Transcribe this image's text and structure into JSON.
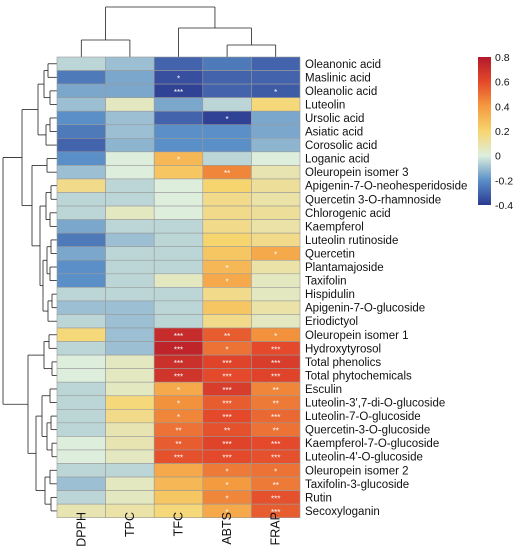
{
  "chart_data": {
    "type": "heatmap",
    "columns": [
      "DPPH",
      "TPC",
      "TFC",
      "ABTS",
      "FRAP"
    ],
    "rows": [
      "Oleanonic acid",
      "Maslinic acid",
      "Oleanolic acid",
      "Luteolin",
      "Ursolic acid",
      "Asiatic acid",
      "Corosolic acid",
      "Loganic acid",
      "Oleuropein isomer 3",
      "Apigenin-7-O-neohesperidoside",
      "Quercetin 3-O-rhamnoside",
      "Chlorogenic acid",
      "Kaempferol",
      "Luteolin rutinoside",
      "Quercetin",
      "Plantamajoside",
      "Taxifolin",
      "Hispidulin",
      "Apigenin-7-O-glucoside",
      "Eriodictyol",
      "Oleuropein isomer 1",
      "Hydroxytyrosol",
      "Total phenolics",
      "Total phytochemicals",
      "Esculin",
      "Luteolin-3',7-di-O-glucoside",
      "Luteolin-7-O-glucoside",
      "Quercetin-3-O-glucoside",
      "Kaempferol-7-O-glucoside",
      "Luteolin-4'-O-glucoside",
      "Oleuropein isomer 2",
      "Taxifolin-3-glucoside",
      "Rutin",
      "Secoxyloganin"
    ],
    "values": [
      [
        -0.05,
        -0.1,
        -0.3,
        -0.25,
        -0.3
      ],
      [
        -0.25,
        -0.15,
        -0.35,
        -0.3,
        -0.3
      ],
      [
        -0.15,
        -0.15,
        -0.38,
        -0.3,
        -0.32
      ],
      [
        -0.1,
        0.05,
        -0.15,
        -0.05,
        0.18
      ],
      [
        -0.2,
        -0.1,
        -0.3,
        -0.38,
        -0.15
      ],
      [
        -0.25,
        -0.1,
        -0.2,
        -0.2,
        -0.15
      ],
      [
        -0.3,
        -0.12,
        -0.2,
        -0.2,
        -0.12
      ],
      [
        -0.2,
        0.0,
        0.3,
        -0.05,
        0.0
      ],
      [
        -0.1,
        0.0,
        0.25,
        0.45,
        0.08
      ],
      [
        0.15,
        -0.05,
        0.0,
        0.2,
        0.12
      ],
      [
        -0.05,
        -0.05,
        0.0,
        0.15,
        0.1
      ],
      [
        -0.05,
        0.05,
        0.0,
        0.15,
        0.12
      ],
      [
        -0.15,
        -0.05,
        -0.05,
        0.15,
        0.1
      ],
      [
        -0.25,
        -0.1,
        -0.05,
        0.2,
        0.15
      ],
      [
        -0.15,
        -0.05,
        -0.05,
        0.25,
        0.35
      ],
      [
        -0.2,
        -0.05,
        -0.05,
        0.3,
        0.1
      ],
      [
        -0.2,
        -0.05,
        0.05,
        0.35,
        0.05
      ],
      [
        -0.05,
        -0.05,
        -0.05,
        0.15,
        0.05
      ],
      [
        -0.1,
        -0.1,
        -0.05,
        0.25,
        0.1
      ],
      [
        -0.05,
        -0.1,
        -0.05,
        0.15,
        0.05
      ],
      [
        0.18,
        -0.1,
        0.72,
        0.55,
        0.42
      ],
      [
        -0.05,
        -0.1,
        0.75,
        0.5,
        0.6
      ],
      [
        0.0,
        0.05,
        0.7,
        0.62,
        0.65
      ],
      [
        0.0,
        0.05,
        0.68,
        0.6,
        0.62
      ],
      [
        -0.05,
        0.05,
        0.35,
        0.65,
        0.45
      ],
      [
        -0.05,
        0.18,
        0.42,
        0.55,
        0.48
      ],
      [
        -0.05,
        0.15,
        0.45,
        0.6,
        0.52
      ],
      [
        -0.05,
        0.08,
        0.5,
        0.58,
        0.5
      ],
      [
        0.0,
        0.08,
        0.55,
        0.62,
        0.6
      ],
      [
        0.0,
        0.05,
        0.58,
        0.6,
        0.58
      ],
      [
        -0.05,
        -0.05,
        0.35,
        0.48,
        0.5
      ],
      [
        -0.1,
        0.05,
        0.3,
        0.4,
        0.48
      ],
      [
        -0.05,
        0.05,
        0.25,
        0.45,
        0.58
      ],
      [
        0.08,
        0.1,
        0.18,
        0.35,
        0.55
      ]
    ],
    "significance": [
      [
        "",
        "",
        "",
        "",
        ""
      ],
      [
        "",
        "",
        "*",
        "",
        ""
      ],
      [
        "",
        "",
        "***",
        "",
        "*"
      ],
      [
        "",
        "",
        "",
        "",
        ""
      ],
      [
        "",
        "",
        "",
        "*",
        ""
      ],
      [
        "",
        "",
        "",
        "",
        ""
      ],
      [
        "",
        "",
        "",
        "",
        ""
      ],
      [
        "",
        "",
        "*",
        "",
        ""
      ],
      [
        "",
        "",
        "",
        "**",
        ""
      ],
      [
        "",
        "",
        "",
        "",
        ""
      ],
      [
        "",
        "",
        "",
        "",
        ""
      ],
      [
        "",
        "",
        "",
        "",
        ""
      ],
      [
        "",
        "",
        "",
        "",
        ""
      ],
      [
        "",
        "",
        "",
        "",
        ""
      ],
      [
        "",
        "",
        "",
        "",
        "*"
      ],
      [
        "",
        "",
        "",
        "*",
        ""
      ],
      [
        "",
        "",
        "",
        "*",
        ""
      ],
      [
        "",
        "",
        "",
        "",
        ""
      ],
      [
        "",
        "",
        "",
        "",
        ""
      ],
      [
        "",
        "",
        "",
        "",
        ""
      ],
      [
        "",
        "",
        "***",
        "**",
        "*"
      ],
      [
        "",
        "",
        "***",
        "*",
        "***"
      ],
      [
        "",
        "",
        "***",
        "***",
        "***"
      ],
      [
        "",
        "",
        "***",
        "***",
        "***"
      ],
      [
        "",
        "",
        "*",
        "***",
        "**"
      ],
      [
        "",
        "",
        "*",
        "***",
        "**"
      ],
      [
        "",
        "",
        "*",
        "***",
        "***"
      ],
      [
        "",
        "",
        "**",
        "**",
        "**"
      ],
      [
        "",
        "",
        "**",
        "***",
        "***"
      ],
      [
        "",
        "",
        "***",
        "***",
        "***"
      ],
      [
        "",
        "",
        "",
        "*",
        "*"
      ],
      [
        "",
        "",
        "",
        "*",
        "**"
      ],
      [
        "",
        "",
        "",
        "*",
        "***"
      ],
      [
        "",
        "",
        "",
        "*",
        "***"
      ]
    ],
    "colorscale": {
      "min": -0.4,
      "max": 0.8,
      "ticks": [
        "0.8",
        "0.6",
        "0.4",
        "0.2",
        "0",
        "-0.2",
        "-0.4"
      ],
      "tick_values": [
        0.8,
        0.6,
        0.4,
        0.2,
        0,
        -0.2,
        -0.4
      ],
      "stops": [
        {
          "v": -0.4,
          "color": "#2b3990"
        },
        {
          "v": -0.2,
          "color": "#5a8fc8"
        },
        {
          "v": 0.0,
          "color": "#ddeedd"
        },
        {
          "v": 0.2,
          "color": "#f7d56e"
        },
        {
          "v": 0.4,
          "color": "#f49a3f"
        },
        {
          "v": 0.6,
          "color": "#e4492b"
        },
        {
          "v": 0.8,
          "color": "#b2182b"
        }
      ]
    },
    "legend_position": "top-right",
    "column_dendrogram": true,
    "row_dendrogram": true
  }
}
